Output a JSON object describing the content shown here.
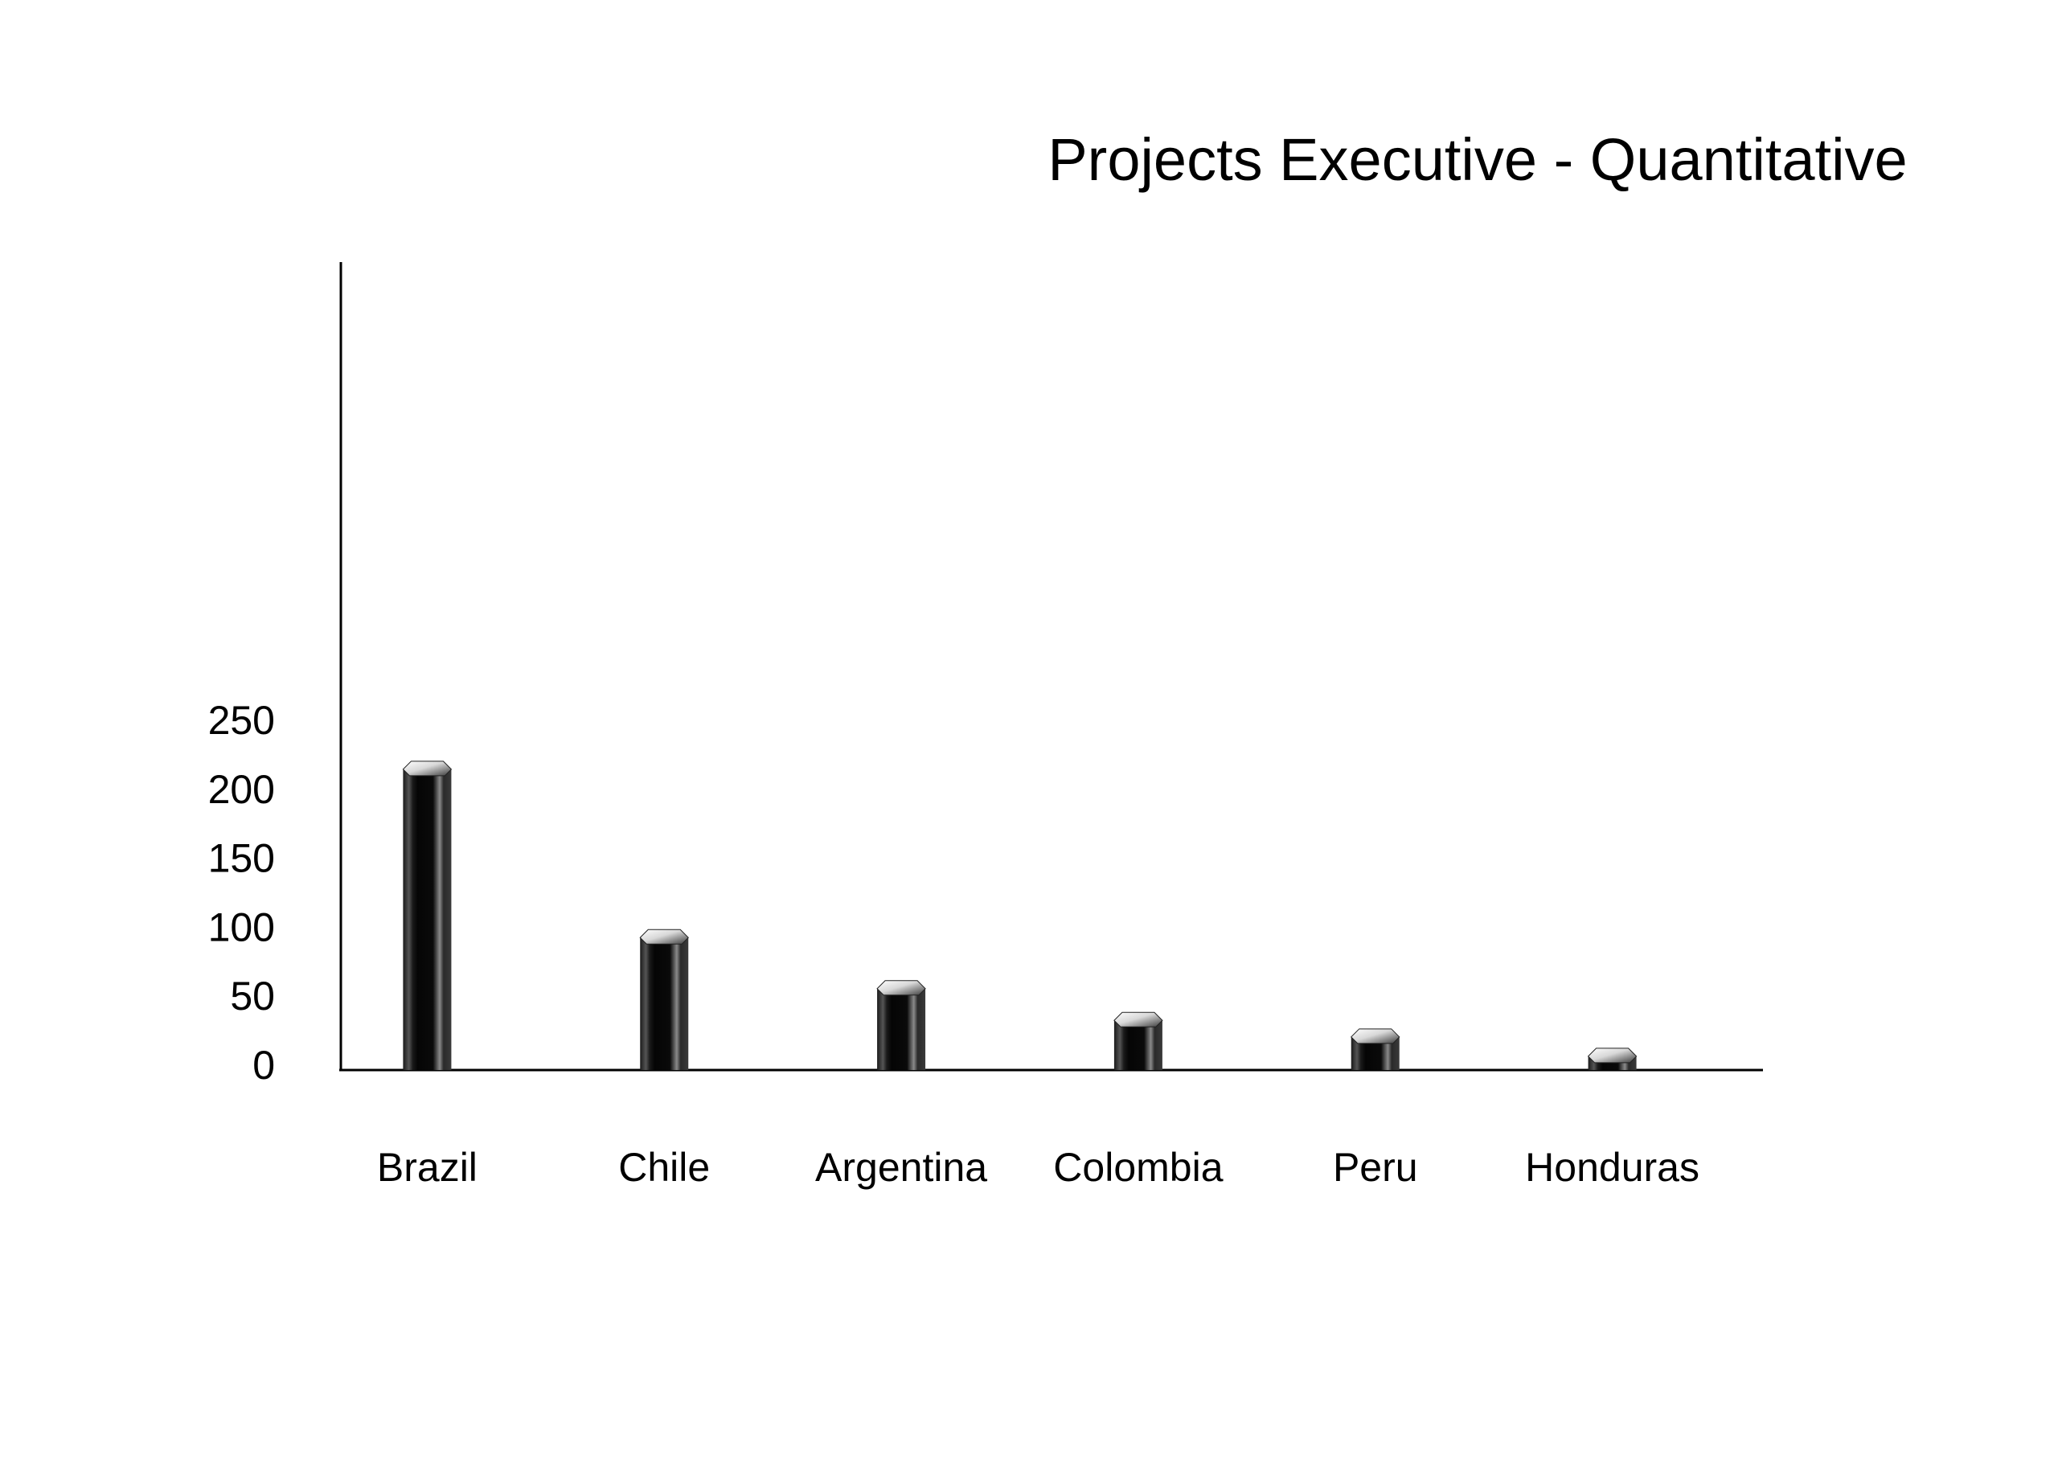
{
  "chart_data": {
    "type": "bar",
    "title": "Projects Executive - Quantitative",
    "xlabel": "",
    "ylabel": "",
    "categories": [
      "Brazil",
      "Chile",
      "Argentina",
      "Colombia",
      "Peru",
      "Honduras"
    ],
    "series": [
      {
        "values": [
          218,
          96,
          59,
          36,
          24,
          10
        ]
      }
    ],
    "yticks": [
      0,
      50,
      100,
      150,
      200,
      250
    ],
    "ylim": [
      0,
      290
    ],
    "grid": false,
    "legend": "none",
    "colors": {
      "bar_dark": "#0a0a0a",
      "bar_mid": "#2a2a2a",
      "bar_highlight": "#8a8a8a",
      "cap_light": "#ffffff",
      "cap_dark": "#3a3a3a",
      "axis": "#000000",
      "background": "#ffffff"
    }
  }
}
